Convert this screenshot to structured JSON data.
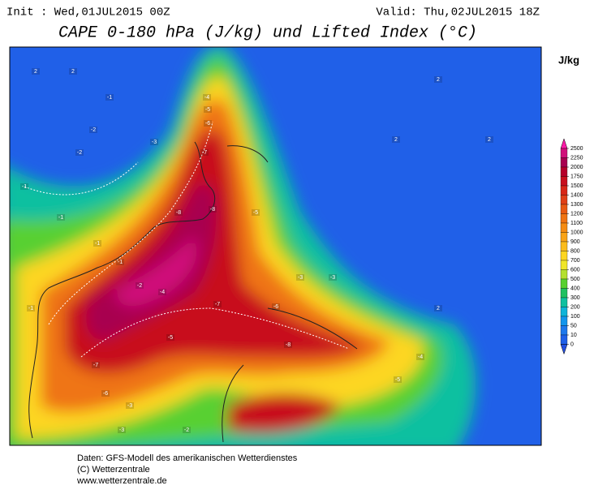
{
  "header": {
    "init": "Init : Wed,01JUL2015 00Z",
    "valid": "Valid: Thu,02JUL2015 18Z",
    "title": "CAPE 0-180 hPa (J/kg) und Lifted Index (°C)"
  },
  "legend": {
    "unit": "J/kg",
    "levels": [
      2500,
      2250,
      2000,
      1750,
      1500,
      1400,
      1300,
      1200,
      1100,
      1000,
      900,
      800,
      700,
      600,
      500,
      400,
      300,
      200,
      100,
      50,
      10,
      0
    ],
    "over_color": "#ff1aa8",
    "colors": [
      "#d0107a",
      "#a8004f",
      "#b5002a",
      "#c8101e",
      "#d82818",
      "#e04018",
      "#e85a14",
      "#ef7414",
      "#f58c14",
      "#f9a418",
      "#fbbc1c",
      "#fdd620",
      "#f0e628",
      "#b4e030",
      "#58d030",
      "#20c060",
      "#10c0a0",
      "#10b4d8",
      "#1496ec",
      "#1e78ec",
      "#2060e8"
    ],
    "under_color": "#2450e0"
  },
  "contour_labels": [
    "2",
    "2",
    "-1",
    "-2",
    "-2",
    "-3",
    "-4",
    "-5",
    "-6",
    "-7",
    "-8",
    "-8",
    "-5",
    "-1",
    "-2",
    "-4",
    "-1",
    "-7",
    "-6",
    "-8",
    "-3",
    "-3",
    "-7",
    "-5",
    "-3",
    "-6",
    "-2",
    "-3",
    "-4",
    "-5",
    "2",
    "2",
    "2",
    "2",
    "-1",
    "-1",
    "-1"
  ],
  "footer": [
    "Daten: GFS-Modell des amerikanischen Wetterdienstes",
    "(C) Wetterzentrale",
    "www.wetterzentrale.de"
  ]
}
